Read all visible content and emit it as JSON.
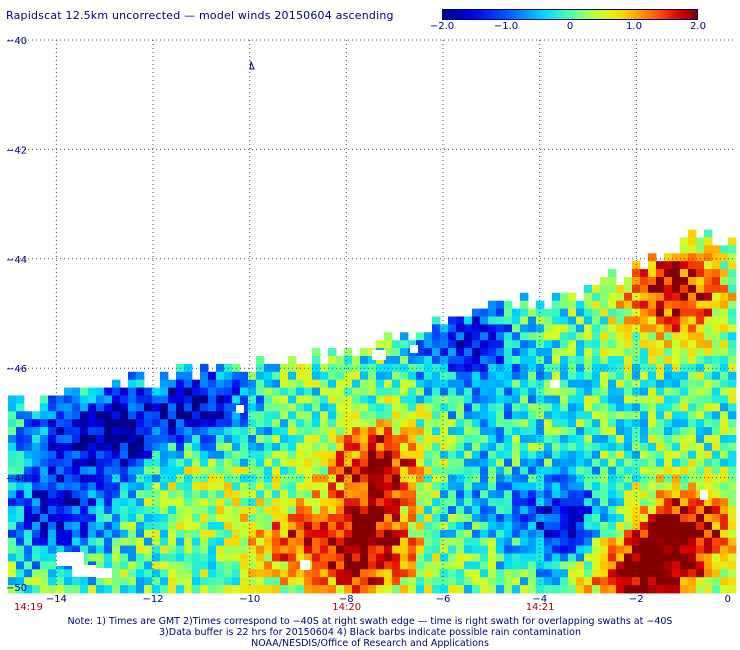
{
  "title": "Rapidscat 12.5km uncorrected — model winds 20150604 ascending",
  "colorbar": {
    "labels": [
      "−2.0",
      "−1.0",
      "0",
      "1.0",
      "2.0"
    ],
    "min": -2.0,
    "max": 2.0
  },
  "colors": {
    "text": "#000080",
    "time_text": "#a00000",
    "grid": "#404080"
  },
  "notes": {
    "line1": "Note: 1) Times are GMT 2)Times correspond to −40S at right swath edge — time is right swath for overlapping swaths at −40S",
    "line2": "3)Data buffer is 22 hrs for 20150604 4) Black barbs indicate possible rain contamination",
    "line3": "NOAA/NESDIS/Office of Research and Applications"
  },
  "chart_data": {
    "type": "heatmap",
    "title": "Rapidscat 12.5km uncorrected — model winds 20150604 ascending",
    "x_axis": {
      "range": [
        -15,
        0
      ],
      "ticks": [
        -14,
        -12,
        -10,
        -8,
        -6,
        -4,
        -2,
        0
      ],
      "tick_labels": [
        "−14",
        "−12",
        "−10",
        "−8",
        "−6",
        "−4",
        "−2",
        "0"
      ]
    },
    "y_axis": {
      "range": [
        -50,
        -40
      ],
      "ticks": [
        -40,
        -42,
        -44,
        -46,
        -48,
        -50
      ],
      "tick_labels": [
        "−40",
        "−42",
        "−44",
        "−46",
        "−48",
        "−50"
      ]
    },
    "time_labels": [
      {
        "x": -15,
        "label": "14:19"
      },
      {
        "x": -8,
        "label": "14:20"
      },
      {
        "x": -4,
        "label": "14:21"
      }
    ],
    "grid": "dotted",
    "value_range": [
      -2.0,
      2.0
    ],
    "features": [
      {
        "lon": -7.3,
        "lat": -47.8,
        "value": 1.9
      },
      {
        "lon": -7.6,
        "lat": -49.3,
        "value": 2.0
      },
      {
        "lon": -9.2,
        "lat": -49.2,
        "value": 1.1
      },
      {
        "lon": -1.0,
        "lat": -49.0,
        "value": 2.0
      },
      {
        "lon": -1.2,
        "lat": -44.6,
        "value": 2.0
      },
      {
        "lon": -2.0,
        "lat": -49.8,
        "value": 2.0
      },
      {
        "lon": -11.2,
        "lat": -47.8,
        "value": 0.6
      },
      {
        "lon": -12.8,
        "lat": -47.2,
        "value": -1.8
      },
      {
        "lon": -11.0,
        "lat": -46.7,
        "value": -1.7
      },
      {
        "lon": -14.0,
        "lat": -48.7,
        "value": -1.4
      },
      {
        "lon": -3.5,
        "lat": -48.8,
        "value": -1.5
      },
      {
        "lon": -5.0,
        "lat": -46.7,
        "value": -0.4
      },
      {
        "lon": -5.5,
        "lat": -45.5,
        "value": -1.3
      },
      {
        "lon": -14.3,
        "lat": -47.3,
        "value": -0.7
      },
      {
        "lon": -2.5,
        "lat": -47.5,
        "value": 0.0
      },
      {
        "lon": -5.8,
        "lat": -48.3,
        "value": -0.5
      }
    ]
  }
}
